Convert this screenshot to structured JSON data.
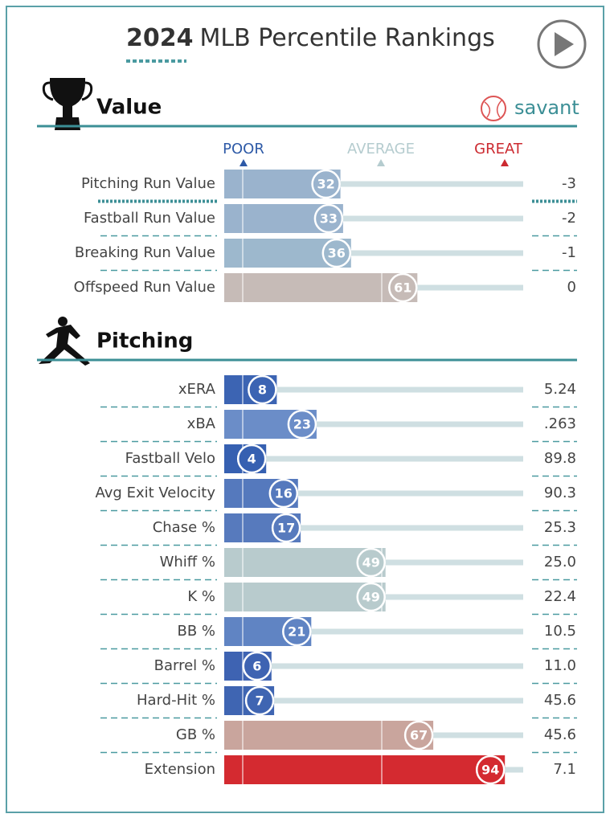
{
  "header": {
    "title_year": "2024",
    "title": "MLB Percentile Rankings",
    "brand": "savant"
  },
  "legend": {
    "poor": "POOR",
    "average": "AVERAGE",
    "great": "GREAT"
  },
  "chart_data": [
    {
      "type": "bar",
      "title": "Value",
      "categories": [
        "Pitching Run Value",
        "Fastball Run Value",
        "Breaking Run Value",
        "Offspeed Run Value"
      ],
      "values": [
        32,
        33,
        36,
        61
      ],
      "colors": [
        "#9ab3cd",
        "#9ab3cd",
        "#9db8cd",
        "#c6bbb7"
      ],
      "stat_labels": [
        "-3",
        "-2",
        "-1",
        "0"
      ],
      "xlim": [
        0,
        100
      ]
    },
    {
      "type": "bar",
      "title": "Pitching",
      "categories": [
        "xERA",
        "xBA",
        "Fastball Velo",
        "Avg Exit Velocity",
        "Chase %",
        "Whiff %",
        "K %",
        "BB %",
        "Barrel %",
        "Hard-Hit %",
        "GB %",
        "Extension"
      ],
      "values": [
        8,
        23,
        4,
        16,
        17,
        49,
        49,
        21,
        6,
        7,
        67,
        94
      ],
      "colors": [
        "#3c64b3",
        "#6b8dc8",
        "#3660b1",
        "#5579bd",
        "#577abd",
        "#b8cbcd",
        "#b8cbcd",
        "#6084c3",
        "#3e63b2",
        "#3f65b2",
        "#c9a59d",
        "#d42a30"
      ],
      "stat_labels": [
        "5.24",
        ".263",
        "89.8",
        "90.3",
        "25.3",
        "25.0",
        "22.4",
        "10.5",
        "11.0",
        "45.6",
        "45.6",
        "7.1"
      ],
      "xlim": [
        0,
        100
      ]
    }
  ]
}
